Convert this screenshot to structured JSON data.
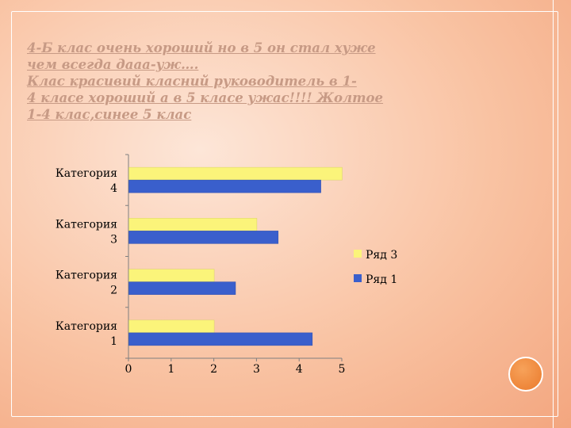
{
  "slide": {
    "title_lines": [
      "4-Б клас очень хороший но в 5 он стал хуже",
      "чем всегда дааа-уж….",
      "   Клас красивий класний руководитель  в 1-",
      "4 класе хороший а в 5 класе ужас!!!! Жолтое",
      "1-4 клас,синее 5 клас"
    ]
  },
  "colors": {
    "series_yellow": "#fbf47a",
    "series_blue": "#3a5fcc",
    "axis": "#7f7f7f",
    "text": "#000000"
  },
  "chart_data": {
    "type": "bar",
    "orientation": "horizontal",
    "categories": [
      "Категория 1",
      "Категория 2",
      "Категория 3",
      "Категория 4"
    ],
    "series": [
      {
        "name": "Ряд 3",
        "values": [
          2,
          2,
          3,
          5
        ]
      },
      {
        "name": "Ряд 1",
        "values": [
          4.3,
          2.5,
          3.5,
          4.5
        ]
      }
    ],
    "xlim": [
      0,
      5
    ],
    "xticks": [
      "0",
      "1",
      "2",
      "3",
      "4",
      "5"
    ],
    "legend_position": "right",
    "grid": false
  }
}
